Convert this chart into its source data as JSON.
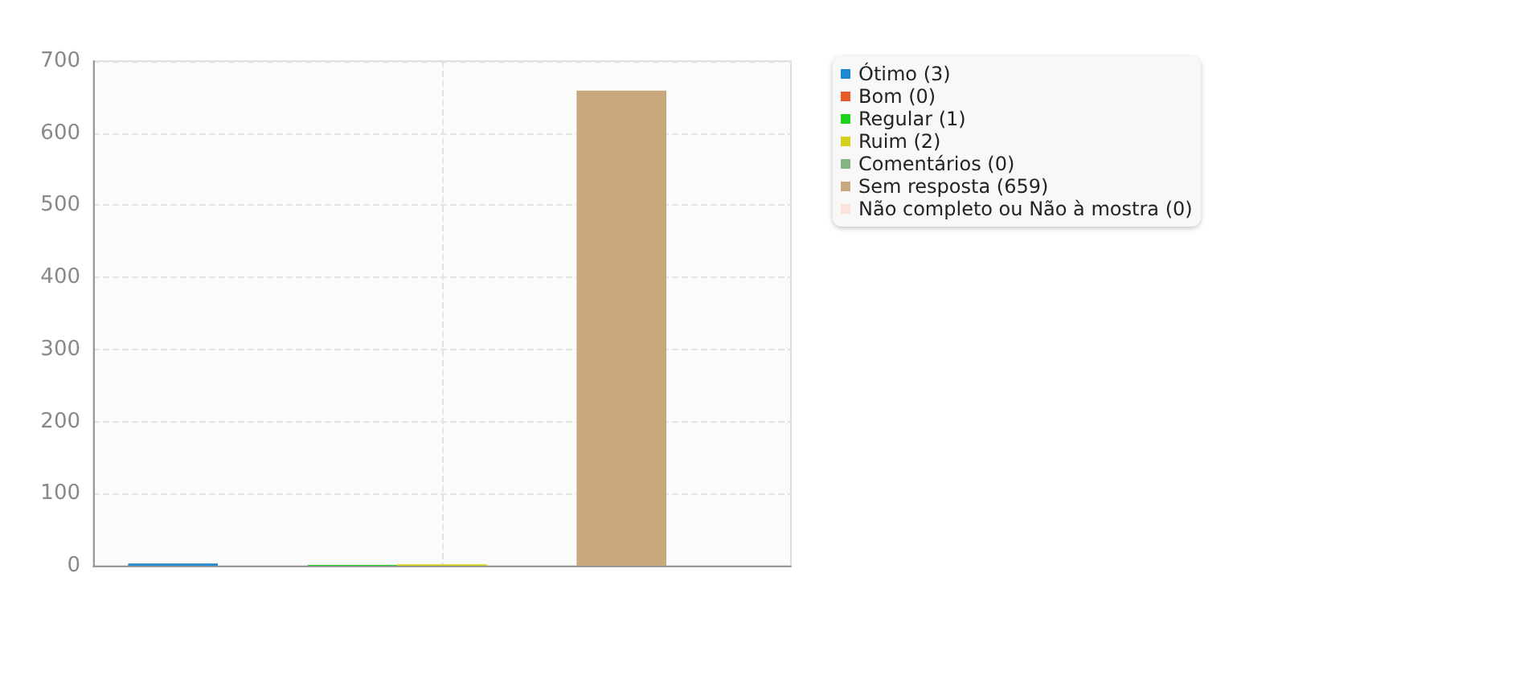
{
  "chart_data": {
    "type": "bar",
    "categories": [
      null
    ],
    "series": [
      {
        "name": "Ótimo (3)",
        "color": "#1f88d0",
        "values": [
          3
        ]
      },
      {
        "name": "Bom (0)",
        "color": "#e8592e",
        "values": [
          0
        ]
      },
      {
        "name": "Regular (1)",
        "color": "#1ed01e",
        "values": [
          1
        ]
      },
      {
        "name": "Ruim (2)",
        "color": "#d2d21a",
        "values": [
          2
        ]
      },
      {
        "name": "Comentários (0)",
        "color": "#84b484",
        "values": [
          0
        ]
      },
      {
        "name": "Sem resposta (659)",
        "color": "#c8a97e",
        "values": [
          659
        ]
      },
      {
        "name": "Não completo ou Não à mostra (0)",
        "color": "#fbe4dc",
        "values": [
          0
        ]
      }
    ],
    "ylim": [
      0,
      700
    ],
    "yticks": [
      0,
      100,
      200,
      300,
      400,
      500,
      600,
      700
    ],
    "grid": true,
    "legend": "top right"
  }
}
